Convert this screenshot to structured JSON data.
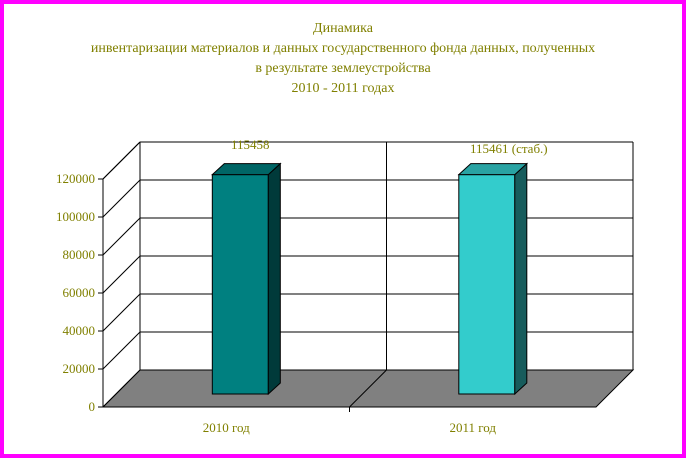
{
  "chart_data": {
    "type": "bar",
    "title_lines": [
      "Динамика",
      "инвентаризации материалов и данных государственного фонда данных, полученных",
      "в результате землеустройства",
      "2010 - 2011 годах"
    ],
    "categories": [
      "2010 год",
      "2011 год"
    ],
    "values": [
      115458,
      115461
    ],
    "data_labels": [
      "115458",
      "115461 (стаб.)"
    ],
    "bar_colors": [
      "#008080",
      "#33cccc"
    ],
    "yticks": [
      0,
      20000,
      40000,
      60000,
      80000,
      100000,
      120000
    ],
    "ylim": [
      0,
      120000
    ],
    "grid": true,
    "legend": false,
    "xlabel": "",
    "ylabel": ""
  }
}
